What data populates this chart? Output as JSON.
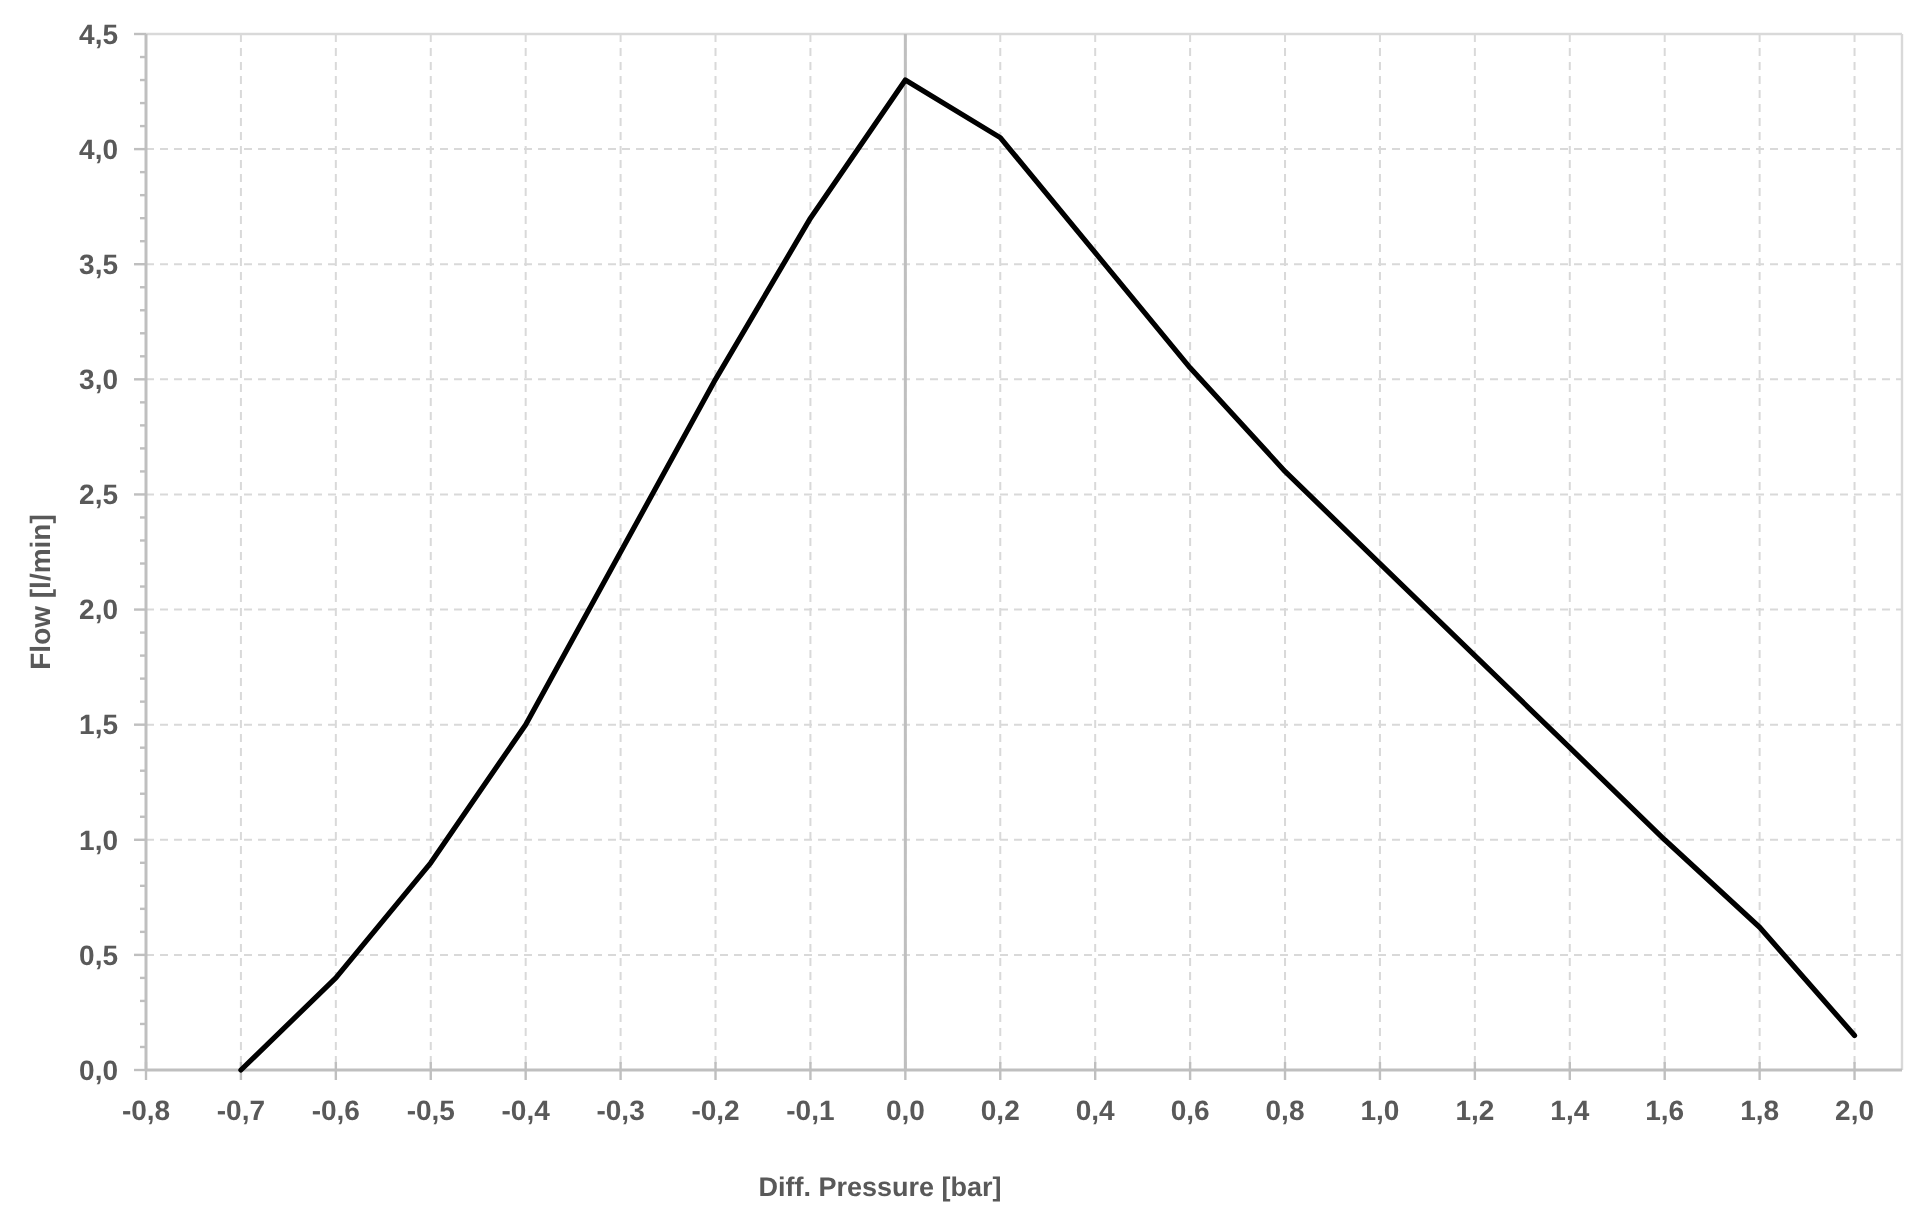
{
  "chart_data": {
    "type": "line",
    "xlabel": "Diff. Pressure [bar]",
    "ylabel": "Flow [l/min]",
    "categories": [
      "-0,8",
      "-0,7",
      "-0,6",
      "-0,5",
      "-0,4",
      "-0,3",
      "-0,2",
      "-0,1",
      "0,0",
      "0,2",
      "0,4",
      "0,6",
      "0,8",
      "1,0",
      "1,2",
      "1,4",
      "1,6",
      "1,8",
      "2,0"
    ],
    "values": [
      null,
      0,
      0.4,
      0.9,
      1.5,
      2.25,
      3.0,
      3.7,
      4.3,
      4.05,
      3.55,
      3.05,
      2.6,
      2.2,
      1.8,
      1.4,
      1.0,
      0.62,
      0.15
    ],
    "color": "#000000",
    "ylim": [
      0,
      4.5
    ],
    "yticks": [
      {
        "value": 0,
        "label": "0,0"
      },
      {
        "value": 0.1,
        "label": null
      },
      {
        "value": 0.2,
        "label": null
      },
      {
        "value": 0.3,
        "label": null
      },
      {
        "value": 0.4,
        "label": null
      },
      {
        "value": 0.5,
        "label": "0,5"
      },
      {
        "value": 0.6,
        "label": null
      },
      {
        "value": 0.7,
        "label": null
      },
      {
        "value": 0.8,
        "label": null
      },
      {
        "value": 0.9,
        "label": null
      },
      {
        "value": 1,
        "label": "1,0"
      },
      {
        "value": 1.1,
        "label": null
      },
      {
        "value": 1.2,
        "label": null
      },
      {
        "value": 1.3,
        "label": null
      },
      {
        "value": 1.4,
        "label": null
      },
      {
        "value": 1.5,
        "label": "1,5"
      },
      {
        "value": 1.6,
        "label": null
      },
      {
        "value": 1.7,
        "label": null
      },
      {
        "value": 1.8,
        "label": null
      },
      {
        "value": 1.9,
        "label": null
      },
      {
        "value": 2,
        "label": "2,0"
      },
      {
        "value": 2.1,
        "label": null
      },
      {
        "value": 2.2,
        "label": null
      },
      {
        "value": 2.3,
        "label": null
      },
      {
        "value": 2.4,
        "label": null
      },
      {
        "value": 2.5,
        "label": "2,5"
      },
      {
        "value": 2.6,
        "label": null
      },
      {
        "value": 2.7,
        "label": null
      },
      {
        "value": 2.8,
        "label": null
      },
      {
        "value": 2.9,
        "label": null
      },
      {
        "value": 3,
        "label": "3,0"
      },
      {
        "value": 3.1,
        "label": null
      },
      {
        "value": 3.2,
        "label": null
      },
      {
        "value": 3.3,
        "label": null
      },
      {
        "value": 3.4,
        "label": null
      },
      {
        "value": 3.5,
        "label": "3,5"
      },
      {
        "value": 3.6,
        "label": null
      },
      {
        "value": 3.7,
        "label": null
      },
      {
        "value": 3.8,
        "label": null
      },
      {
        "value": 3.9,
        "label": null
      },
      {
        "value": 4,
        "label": "4,0"
      },
      {
        "value": 4.1,
        "label": null
      },
      {
        "value": 4.2,
        "label": null
      },
      {
        "value": 4.3,
        "label": null
      },
      {
        "value": 4.4,
        "label": null
      },
      {
        "value": 4.5,
        "label": "4,5"
      }
    ],
    "grid": true,
    "ref_lines": [
      {
        "axis": "x",
        "value": "0,0",
        "color": "#bfbfbf"
      }
    ]
  }
}
